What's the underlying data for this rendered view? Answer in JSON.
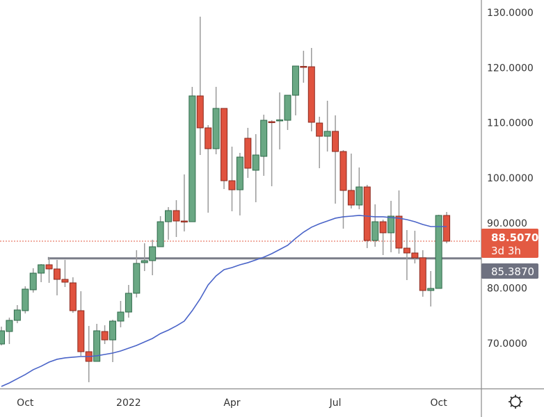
{
  "chart_data": {
    "type": "candlestick",
    "title": "",
    "xlabel": "",
    "ylabel": "",
    "ylim": [
      61,
      132
    ],
    "grid": false,
    "y_ticks": [
      "70.0000",
      "80.0000",
      "90.0000",
      "100.0000",
      "110.0000",
      "120.0000",
      "130.0000"
    ],
    "y_tick_values": [
      70,
      80,
      90,
      100,
      110,
      120,
      130
    ],
    "x_ticks": [
      {
        "label": "Oct",
        "candle": 3
      },
      {
        "label": "2022",
        "candle": 16
      },
      {
        "label": "Apr",
        "candle": 29
      },
      {
        "label": "Jul",
        "candle": 42
      },
      {
        "label": "Oct",
        "candle": 55
      }
    ],
    "colors": {
      "up": "#6aa884",
      "up_border": "#2f6a4a",
      "down": "#e0533f",
      "down_border": "#8a2a1f",
      "wick": "#9a9a9a",
      "ma": "#4a64c8",
      "hline": "#7a7d88",
      "last_price_tag": "#e35a42",
      "hline_tag": "#6e7180"
    },
    "candles": [
      [
        69.85,
        73.0,
        69.6,
        72.25
      ],
      [
        72.12,
        74.64,
        69.85,
        74.14
      ],
      [
        74.14,
        76.91,
        73.63,
        76.03
      ],
      [
        75.9,
        80.32,
        75.4,
        79.81
      ],
      [
        79.69,
        83.6,
        79.18,
        82.71
      ],
      [
        82.71,
        84.35,
        81.07,
        84.23
      ],
      [
        84.23,
        85.61,
        80.95,
        83.47
      ],
      [
        83.47,
        85.11,
        78.68,
        81.58
      ],
      [
        81.58,
        85.11,
        80.19,
        81.07
      ],
      [
        80.95,
        81.96,
        75.52,
        75.9
      ],
      [
        75.9,
        79.43,
        67.71,
        68.46
      ],
      [
        68.46,
        73.13,
        62.92,
        66.7
      ],
      [
        66.7,
        73.51,
        66.7,
        72.25
      ],
      [
        72.12,
        73.25,
        69.85,
        70.6
      ],
      [
        70.6,
        74.26,
        66.57,
        74.01
      ],
      [
        74.01,
        77.67,
        72.88,
        75.65
      ],
      [
        75.65,
        80.57,
        74.64,
        79.06
      ],
      [
        79.06,
        86.87,
        78.3,
        84.48
      ],
      [
        84.61,
        88.13,
        83.09,
        84.98
      ],
      [
        84.98,
        88.77,
        82.33,
        87.5
      ],
      [
        87.5,
        93.05,
        87.5,
        92.04
      ],
      [
        92.04,
        94.69,
        88.77,
        94.06
      ],
      [
        94.06,
        95.95,
        89.27,
        92.17
      ],
      [
        92.17,
        100.62,
        90.28,
        92.1
      ],
      [
        92.04,
        116.51,
        92.04,
        114.87
      ],
      [
        114.87,
        129.24,
        104.15,
        109.07
      ],
      [
        109.07,
        109.57,
        93.68,
        105.29
      ],
      [
        105.29,
        116.51,
        104.28,
        112.6
      ],
      [
        112.6,
        112.6,
        97.97,
        99.48
      ],
      [
        99.48,
        105.66,
        93.94,
        97.84
      ],
      [
        97.84,
        104.53,
        93.18,
        103.77
      ],
      [
        107.18,
        109.07,
        99.99,
        101.75
      ],
      [
        101.38,
        107.93,
        95.58,
        104.15
      ],
      [
        103.9,
        111.46,
        100.37,
        110.45
      ],
      [
        110.2,
        110.45,
        98.48,
        110.05
      ],
      [
        110.39,
        115.5,
        105.16,
        110.52
      ],
      [
        110.45,
        114.99,
        108.69,
        114.99
      ],
      [
        114.99,
        120.29,
        111.34,
        120.29
      ],
      [
        120.23,
        123.06,
        117.26,
        120.1
      ],
      [
        120.16,
        123.57,
        108.44,
        110.08
      ],
      [
        109.95,
        111.09,
        101.75,
        107.55
      ],
      [
        107.55,
        113.99,
        104.78,
        108.44
      ],
      [
        108.44,
        111.34,
        95.32,
        104.78
      ],
      [
        104.78,
        105.03,
        90.78,
        97.72
      ],
      [
        97.72,
        104.4,
        94.44,
        95.07
      ],
      [
        95.07,
        101.88,
        94.31,
        98.35
      ],
      [
        98.35,
        98.73,
        87.25,
        88.64
      ],
      [
        88.64,
        95.19,
        87.5,
        92.04
      ],
      [
        92.04,
        92.42,
        85.99,
        90.03
      ],
      [
        90.03,
        95.83,
        86.5,
        93.05
      ],
      [
        93.05,
        97.72,
        86.24,
        87.25
      ],
      [
        87.25,
        90.53,
        81.45,
        86.37
      ],
      [
        86.37,
        90.4,
        84.48,
        85.49
      ],
      [
        85.49,
        86.87,
        78.43,
        79.56
      ],
      [
        79.56,
        83.09,
        76.66,
        79.94
      ],
      [
        79.94,
        93.3,
        79.94,
        93.18
      ],
      [
        93.18,
        93.81,
        88.13,
        88.507
      ]
    ],
    "moving_average": [
      62.16,
      62.79,
      63.55,
      64.31,
      65.19,
      65.82,
      66.57,
      67.08,
      67.33,
      67.46,
      67.58,
      67.58,
      67.71,
      67.96,
      68.21,
      68.59,
      69.09,
      69.6,
      70.23,
      70.86,
      71.74,
      72.37,
      73.13,
      74.01,
      75.9,
      78.05,
      80.57,
      82.21,
      83.34,
      83.72,
      84.23,
      84.61,
      85.11,
      85.61,
      86.24,
      87.0,
      87.76,
      89.02,
      90.15,
      91.04,
      91.67,
      92.17,
      92.68,
      92.93,
      93.05,
      93.18,
      93.05,
      92.93,
      92.93,
      92.8,
      92.68,
      92.42,
      92.04,
      91.54,
      91.16,
      91.16,
      91.16
    ],
    "horizontal_line": {
      "value": 85.387,
      "label": "85.3870",
      "starts_at_candle": 6
    },
    "last_price": {
      "value": 88.507,
      "label": "88.5070",
      "countdown": "3d 3h"
    }
  },
  "toolbar": {
    "settings_icon": "gear-icon"
  }
}
